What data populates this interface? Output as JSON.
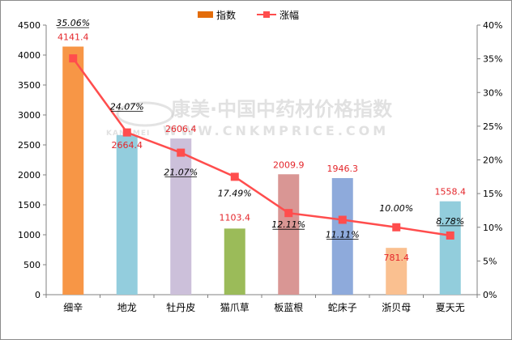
{
  "chart_data": {
    "type": "bar",
    "categories": [
      "细辛",
      "地龙",
      "牡丹皮",
      "猫爪草",
      "板蓝根",
      "蛇床子",
      "浙贝母",
      "夏天无"
    ],
    "series": [
      {
        "name": "指数",
        "type": "bar",
        "axis": "left",
        "values": [
          4141.4,
          2664.4,
          2606.4,
          1103.4,
          2009.9,
          1946.3,
          781.4,
          1558.4
        ],
        "labels": [
          "4141.4",
          "2664.4",
          "2606.4",
          "1103.4",
          "2009.9",
          "1946.3",
          "781.4",
          "1558.4"
        ],
        "colors": [
          "#f79646",
          "#93cddd",
          "#ccc0da",
          "#9bbb59",
          "#d99694",
          "#8eaadb",
          "#fac090",
          "#92cddc"
        ]
      },
      {
        "name": "涨幅",
        "type": "line",
        "axis": "right",
        "values": [
          35.06,
          24.07,
          21.07,
          17.49,
          12.11,
          11.11,
          10.0,
          8.78
        ],
        "labels": [
          "35.06%",
          "24.07%",
          "21.07%",
          "17.49%",
          "12.11%",
          "11.11%",
          "10.00%",
          "8.78%"
        ],
        "color": "#ff4d4d"
      }
    ],
    "left_axis": {
      "min": 0,
      "max": 4500,
      "step": 500,
      "ticks": [
        "0",
        "500",
        "1000",
        "1500",
        "2000",
        "2500",
        "3000",
        "3500",
        "4000",
        "4500"
      ]
    },
    "right_axis": {
      "min": 0,
      "max": 40,
      "step": 5,
      "ticks": [
        "0%",
        "5%",
        "10%",
        "15%",
        "20%",
        "25%",
        "30%",
        "35%",
        "40%"
      ]
    },
    "legend_position": "top-center",
    "grid": false
  },
  "legend": {
    "bar_label": "指数",
    "line_label": "涨幅",
    "bar_color": "#e36c0a",
    "line_color": "#ff4d4d"
  },
  "watermark": {
    "line1": "康美·中国中药材价格指数",
    "line2": "WWW.CNKMPRICE.COM",
    "logo_text": "KANGMEI"
  }
}
